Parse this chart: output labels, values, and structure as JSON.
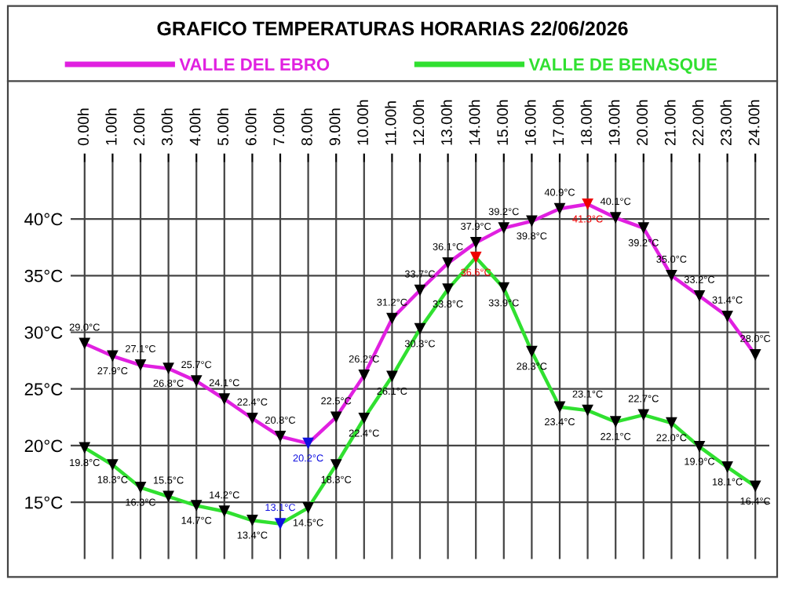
{
  "chart_data": {
    "type": "line",
    "title": "GRAFICO TEMPERATURAS HORARIAS 22/06/2026",
    "categories": [
      "0.00h",
      "1.00h",
      "2.00h",
      "3.00h",
      "4.00h",
      "5.00h",
      "6.00h",
      "7.00h",
      "8.00h",
      "9.00h",
      "10.00h",
      "11.00h",
      "12.00h",
      "13.00h",
      "14.00h",
      "15.00h",
      "16.00h",
      "17.00h",
      "18.00h",
      "19.00h",
      "20.00h",
      "21.00h",
      "22.00h",
      "23.00h",
      "24.00h"
    ],
    "series": [
      {
        "name": "VALLE DEL EBRO",
        "color": "#e020e0",
        "values": [
          29.0,
          27.9,
          27.1,
          26.8,
          25.7,
          24.1,
          22.4,
          20.8,
          20.2,
          22.5,
          26.2,
          31.2,
          33.7,
          36.1,
          37.9,
          39.2,
          39.8,
          40.9,
          41.3,
          40.1,
          39.2,
          35.0,
          33.2,
          31.4,
          28.0
        ],
        "value_labels": [
          "29.0°C",
          "27.9°C",
          "27.1°C",
          "26.8°C",
          "25.7°C",
          "24.1°C",
          "22.4°C",
          "20.8°C",
          "20.2°C",
          "22.5°C",
          "26.2°C",
          "31.2°C",
          "33.7°C",
          "36.1°C",
          "37.9°C",
          "39.2°C",
          "39.8°C",
          "40.9°C",
          "41.3°C",
          "40.1°C",
          "39.2°C",
          "35.0°C",
          "33.2°C",
          "31.4°C",
          "28.0°C"
        ],
        "colors": [
          "#000000",
          "#000000",
          "#000000",
          "#000000",
          "#000000",
          "#000000",
          "#000000",
          "#000000",
          "#1010e0",
          "#000000",
          "#000000",
          "#000000",
          "#000000",
          "#000000",
          "#000000",
          "#000000",
          "#000000",
          "#000000",
          "#ee0000",
          "#000000",
          "#000000",
          "#000000",
          "#000000",
          "#000000",
          "#000000"
        ]
      },
      {
        "name": "VALLE DE BENASQUE",
        "color": "#30e030",
        "values": [
          19.8,
          18.3,
          16.3,
          15.5,
          14.7,
          14.2,
          13.4,
          13.1,
          14.5,
          18.3,
          22.4,
          26.1,
          30.3,
          33.8,
          36.6,
          33.9,
          28.3,
          23.4,
          23.1,
          22.1,
          22.7,
          22.0,
          19.9,
          18.1,
          16.4
        ],
        "value_labels": [
          "19.8°C",
          "18.3°C",
          "16.3°C",
          "15.5°C",
          "14.7°C",
          "14.2°C",
          "13.4°C",
          "13.1°C",
          "14.5°C",
          "18.3°C",
          "22.4°C",
          "26.1°C",
          "30.3°C",
          "33.8°C",
          "36.6°C",
          "33.9°C",
          "28.3°C",
          "23.4°C",
          "23.1°C",
          "22.1°C",
          "22.7°C",
          "22.0°C",
          "19.9°C",
          "18.1°C",
          "16.4°C"
        ],
        "colors": [
          "#000000",
          "#000000",
          "#000000",
          "#000000",
          "#000000",
          "#000000",
          "#000000",
          "#1010e0",
          "#000000",
          "#000000",
          "#000000",
          "#000000",
          "#000000",
          "#000000",
          "#ee0000",
          "#000000",
          "#000000",
          "#000000",
          "#000000",
          "#000000",
          "#000000",
          "#000000",
          "#000000",
          "#000000",
          "#000000"
        ]
      }
    ],
    "ylim": [
      10,
      45
    ],
    "yticks": [
      {
        "value": 15,
        "label": "15°C"
      },
      {
        "value": 20,
        "label": "20°C"
      },
      {
        "value": 25,
        "label": "25°C"
      },
      {
        "value": 30,
        "label": "30°C"
      },
      {
        "value": 35,
        "label": "35°C"
      },
      {
        "value": 40,
        "label": "40°C"
      }
    ],
    "grid": true,
    "legend": "top",
    "marker": "triangle"
  }
}
